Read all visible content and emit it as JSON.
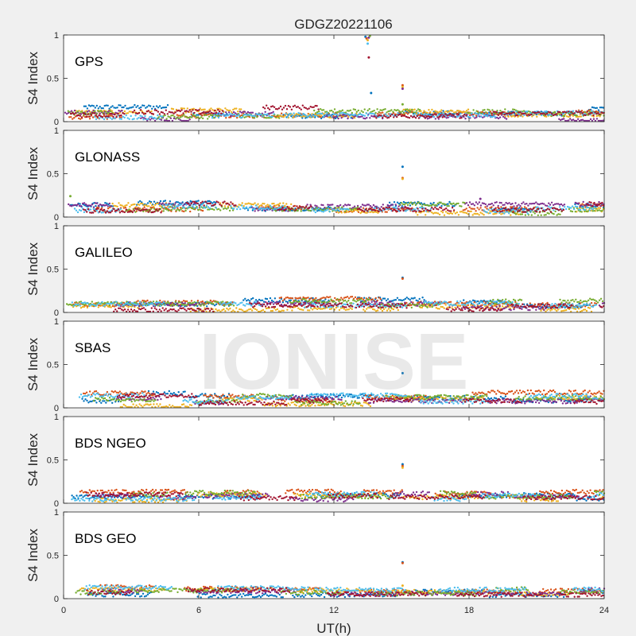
{
  "figure": {
    "title": "GDGZ20221106",
    "watermark": "IONISE",
    "xlabel": "UT(h)",
    "ylabel": "S4 Index",
    "background": "#f0f0f0",
    "axes_background": "#ffffff"
  },
  "chart_data": [
    {
      "type": "scatter",
      "panel_label": "GPS",
      "xlim": [
        0,
        24
      ],
      "ylim": [
        0,
        1
      ],
      "xticks": [
        "0",
        "6",
        "12",
        "18",
        "24"
      ],
      "yticks": [
        "0",
        "0.5",
        "1"
      ],
      "baseline": [
        0.02,
        0.2
      ],
      "outliers": [
        {
          "x": 13.4,
          "y": 0.98
        },
        {
          "x": 13.45,
          "y": 0.96
        },
        {
          "x": 13.5,
          "y": 0.94
        },
        {
          "x": 13.55,
          "y": 0.97
        },
        {
          "x": 13.6,
          "y": 0.99
        },
        {
          "x": 13.5,
          "y": 0.9
        },
        {
          "x": 13.55,
          "y": 0.74
        },
        {
          "x": 13.65,
          "y": 0.33
        },
        {
          "x": 15.05,
          "y": 0.42
        },
        {
          "x": 15.05,
          "y": 0.4
        },
        {
          "x": 15.05,
          "y": 0.38
        },
        {
          "x": 15.05,
          "y": 0.2
        }
      ]
    },
    {
      "type": "scatter",
      "panel_label": "GLONASS",
      "xlim": [
        0,
        24
      ],
      "ylim": [
        0,
        1
      ],
      "xticks": [
        "0",
        "6",
        "12",
        "18",
        "24"
      ],
      "yticks": [
        "0",
        "0.5",
        "1"
      ],
      "baseline": [
        0.02,
        0.22
      ],
      "outliers": [
        {
          "x": 15.05,
          "y": 0.58
        },
        {
          "x": 15.05,
          "y": 0.45
        },
        {
          "x": 15.05,
          "y": 0.44
        },
        {
          "x": 18.5,
          "y": 0.21
        },
        {
          "x": 0.3,
          "y": 0.24
        }
      ]
    },
    {
      "type": "scatter",
      "panel_label": "GALILEO",
      "xlim": [
        0,
        24
      ],
      "ylim": [
        0,
        1
      ],
      "xticks": [
        "0",
        "6",
        "12",
        "18",
        "24"
      ],
      "yticks": [
        "0",
        "0.5",
        "1"
      ],
      "baseline": [
        0.02,
        0.17
      ],
      "outliers": [
        {
          "x": 15.05,
          "y": 0.4
        },
        {
          "x": 15.05,
          "y": 0.39
        }
      ]
    },
    {
      "type": "scatter",
      "panel_label": "SBAS",
      "xlim": [
        0,
        24
      ],
      "ylim": [
        0,
        1
      ],
      "xticks": [
        "0",
        "6",
        "12",
        "18",
        "24"
      ],
      "yticks": [
        "0",
        "0.5",
        "1"
      ],
      "baseline": [
        0.03,
        0.2
      ],
      "outliers": [
        {
          "x": 15.05,
          "y": 0.4
        }
      ]
    },
    {
      "type": "scatter",
      "panel_label": "BDS NGEO",
      "xlim": [
        0,
        24
      ],
      "ylim": [
        0,
        1
      ],
      "xticks": [
        "0",
        "6",
        "12",
        "18",
        "24"
      ],
      "yticks": [
        "0",
        "0.5",
        "1"
      ],
      "baseline": [
        0.02,
        0.16
      ],
      "outliers": [
        {
          "x": 15.05,
          "y": 0.45
        },
        {
          "x": 15.05,
          "y": 0.43
        },
        {
          "x": 15.05,
          "y": 0.41
        }
      ]
    },
    {
      "type": "scatter",
      "panel_label": "BDS GEO",
      "xlim": [
        0,
        24
      ],
      "ylim": [
        0,
        1
      ],
      "xticks": [
        "0",
        "6",
        "12",
        "18",
        "24"
      ],
      "yticks": [
        "0",
        "0.5",
        "1"
      ],
      "baseline": [
        0.04,
        0.14
      ],
      "outliers": [
        {
          "x": 15.05,
          "y": 0.42
        },
        {
          "x": 15.05,
          "y": 0.41
        },
        {
          "x": 15.05,
          "y": 0.15
        }
      ]
    }
  ],
  "series_colors": [
    "#0072bd",
    "#d95319",
    "#edb120",
    "#7e2f8e",
    "#77ac30",
    "#4dbeee",
    "#a2142f"
  ]
}
